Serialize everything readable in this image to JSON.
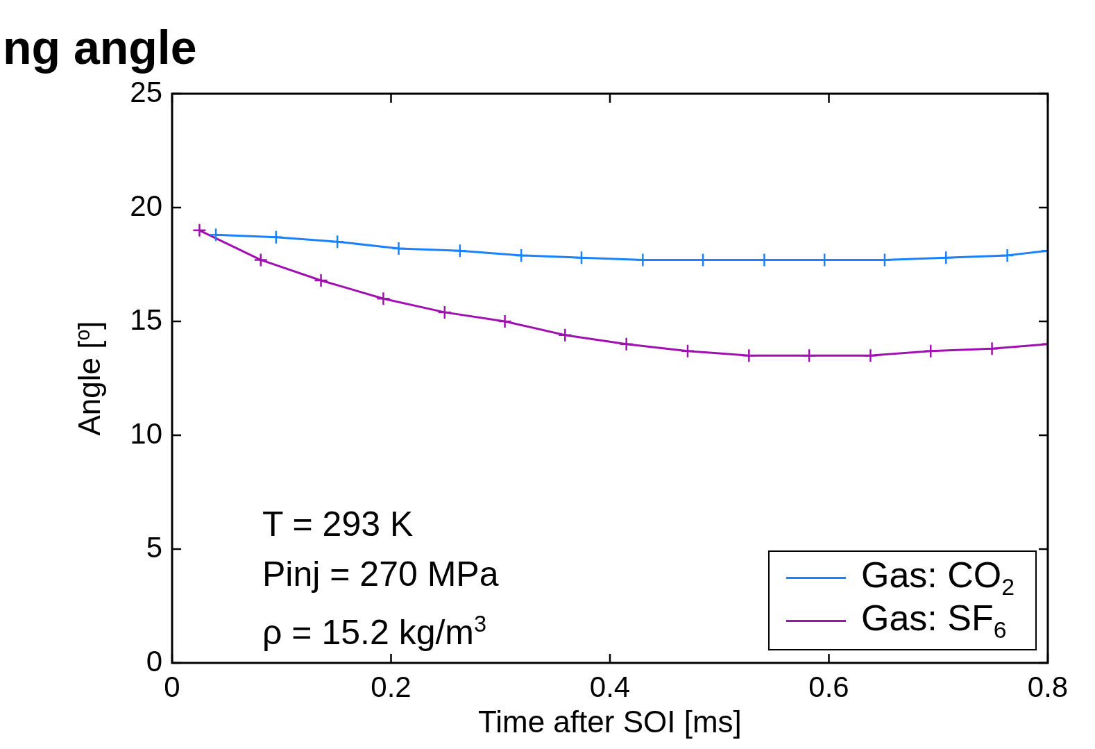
{
  "chart_data": {
    "type": "line",
    "title": "ng angle",
    "xlabel": "Time after SOI [ms]",
    "ylabel": "Angle [$^{o}$]",
    "xlim": [
      0,
      0.8
    ],
    "xticks": [
      0,
      0.2,
      0.4,
      0.6,
      0.8
    ],
    "ylim": [
      0,
      25
    ],
    "yticks": [
      0,
      5,
      10,
      15,
      20,
      25
    ],
    "grid": false,
    "legend": "bottom right",
    "marker": "cross",
    "line_style": "solid",
    "annotations": [
      "T = 293 K",
      "Pinj = 270 MPa",
      "ρ = 15.2 kg/m$^{3}$"
    ],
    "series": [
      {
        "name": "Gas: CO$_{2}$",
        "color": "#1a82ff",
        "x": [
          0.04,
          0.095,
          0.151,
          0.207,
          0.263,
          0.319,
          0.374,
          0.43,
          0.485,
          0.541,
          0.596,
          0.651,
          0.707,
          0.763,
          0.8
        ],
        "values": [
          18.8,
          18.7,
          18.5,
          18.2,
          18.1,
          17.9,
          17.8,
          17.7,
          17.7,
          17.7,
          17.7,
          17.7,
          17.8,
          17.9,
          18.1
        ]
      },
      {
        "name": "Gas: SF$_{6}$",
        "color": "#a010b0",
        "x": [
          0.025,
          0.081,
          0.136,
          0.193,
          0.249,
          0.304,
          0.359,
          0.415,
          0.471,
          0.527,
          0.582,
          0.638,
          0.693,
          0.749,
          0.8
        ],
        "values": [
          19.0,
          17.7,
          16.8,
          16.0,
          15.4,
          15.0,
          14.4,
          14.0,
          13.7,
          13.5,
          13.5,
          13.5,
          13.7,
          13.8,
          14.0
        ]
      }
    ]
  }
}
